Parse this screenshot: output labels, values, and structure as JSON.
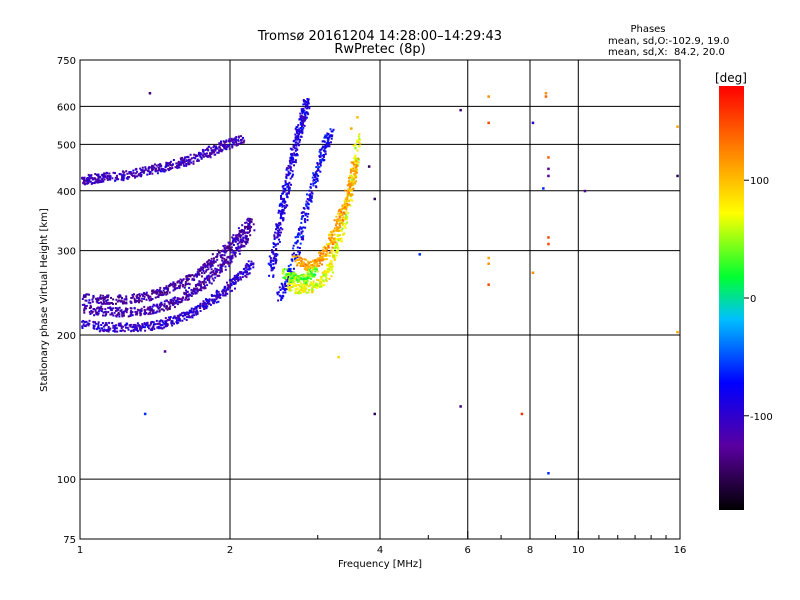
{
  "chart_data": {
    "type": "scatter",
    "title": "Tromsø 20161204 14:28:00–14:29:43",
    "subtitle": "RwPretec (8p)",
    "xlabel": "Frequency [MHz]",
    "ylabel": "Stationary phase Virtual Height [km]",
    "x_scale": "log",
    "y_scale": "log",
    "xlim": [
      1,
      16
    ],
    "ylim": [
      75,
      750
    ],
    "x_ticks": [
      1,
      2,
      4,
      6,
      8,
      10,
      16
    ],
    "y_ticks": [
      75,
      100,
      200,
      300,
      400,
      500,
      600,
      750
    ],
    "grid": true,
    "info": {
      "heading": "Phases",
      "line1": "mean, sd,O:-102.9, 19.0",
      "line2": "mean, sd,X:  84.2, 20.0"
    },
    "colorbar": {
      "label": "[deg]",
      "range": [
        -180,
        180
      ],
      "ticks": [
        -100,
        0,
        100
      ],
      "tick_labels": [
        "-100",
        "0",
        "100"
      ]
    },
    "traces": [
      {
        "points": [
          [
            1.0,
            422
          ],
          [
            1.05,
            425
          ],
          [
            1.1,
            428
          ],
          [
            1.2,
            432
          ],
          [
            1.3,
            438
          ],
          [
            1.4,
            445
          ],
          [
            1.5,
            452
          ],
          [
            1.6,
            460
          ],
          [
            1.7,
            470
          ],
          [
            1.8,
            482
          ],
          [
            1.9,
            495
          ],
          [
            2.0,
            505
          ],
          [
            2.1,
            515
          ]
        ],
        "phase": -110
      },
      {
        "points": [
          [
            1.0,
            228
          ],
          [
            1.1,
            225
          ],
          [
            1.2,
            224
          ],
          [
            1.3,
            225
          ],
          [
            1.4,
            228
          ],
          [
            1.5,
            233
          ],
          [
            1.6,
            240
          ],
          [
            1.7,
            250
          ],
          [
            1.8,
            262
          ],
          [
            1.9,
            276
          ],
          [
            2.0,
            292
          ],
          [
            2.1,
            310
          ],
          [
            2.2,
            330
          ]
        ],
        "phase": -115
      },
      {
        "points": [
          [
            1.0,
            212
          ],
          [
            1.1,
            209
          ],
          [
            1.2,
            208
          ],
          [
            1.3,
            208
          ],
          [
            1.4,
            210
          ],
          [
            1.5,
            214
          ],
          [
            1.6,
            219
          ],
          [
            1.7,
            226
          ],
          [
            1.8,
            234
          ],
          [
            1.9,
            244
          ],
          [
            2.0,
            255
          ],
          [
            2.1,
            268
          ],
          [
            2.2,
            282
          ]
        ],
        "phase": -100
      },
      {
        "points": [
          [
            1.0,
            240
          ],
          [
            1.1,
            238
          ],
          [
            1.2,
            238
          ],
          [
            1.3,
            240
          ],
          [
            1.4,
            244
          ],
          [
            1.5,
            250
          ],
          [
            1.6,
            258
          ],
          [
            1.7,
            268
          ],
          [
            1.8,
            280
          ],
          [
            1.9,
            295
          ],
          [
            2.0,
            312
          ],
          [
            2.1,
            330
          ],
          [
            2.2,
            350
          ]
        ],
        "phase": -120
      },
      {
        "points": [
          [
            2.4,
            270
          ],
          [
            2.45,
            300
          ],
          [
            2.5,
            340
          ],
          [
            2.55,
            380
          ],
          [
            2.6,
            420
          ],
          [
            2.65,
            460
          ],
          [
            2.7,
            500
          ],
          [
            2.75,
            540
          ],
          [
            2.8,
            580
          ],
          [
            2.85,
            620
          ]
        ],
        "phase": -90
      },
      {
        "points": [
          [
            2.5,
            240
          ],
          [
            2.6,
            260
          ],
          [
            2.7,
            300
          ],
          [
            2.8,
            350
          ],
          [
            2.9,
            400
          ],
          [
            3.0,
            450
          ],
          [
            3.1,
            500
          ],
          [
            3.2,
            540
          ]
        ],
        "phase": -80
      },
      {
        "points": [
          [
            2.6,
            255
          ],
          [
            2.75,
            250
          ],
          [
            2.9,
            252
          ],
          [
            3.05,
            260
          ],
          [
            3.15,
            275
          ],
          [
            3.25,
            300
          ],
          [
            3.35,
            340
          ],
          [
            3.45,
            390
          ],
          [
            3.55,
            450
          ],
          [
            3.6,
            520
          ]
        ],
        "phase": 70
      },
      {
        "points": [
          [
            2.7,
            290
          ],
          [
            2.85,
            280
          ],
          [
            3.0,
            285
          ],
          [
            3.1,
            300
          ],
          [
            3.2,
            320
          ],
          [
            3.3,
            350
          ],
          [
            3.4,
            380
          ],
          [
            3.5,
            420
          ],
          [
            3.55,
            460
          ]
        ],
        "phase": 110
      },
      {
        "points": [
          [
            2.55,
            270
          ],
          [
            2.65,
            265
          ],
          [
            2.75,
            262
          ],
          [
            2.85,
            265
          ],
          [
            2.95,
            275
          ]
        ],
        "phase": 40
      }
    ],
    "scatter_points": [
      {
        "x": 1.38,
        "y": 640,
        "phase": -140
      },
      {
        "x": 1.48,
        "y": 185,
        "phase": -130
      },
      {
        "x": 1.35,
        "y": 137,
        "phase": -60
      },
      {
        "x": 3.9,
        "y": 137,
        "phase": -150
      },
      {
        "x": 3.3,
        "y": 180,
        "phase": 90
      },
      {
        "x": 3.9,
        "y": 385,
        "phase": -150
      },
      {
        "x": 3.8,
        "y": 450,
        "phase": -150
      },
      {
        "x": 4.8,
        "y": 295,
        "phase": -60
      },
      {
        "x": 5.8,
        "y": 590,
        "phase": -140
      },
      {
        "x": 5.8,
        "y": 142,
        "phase": -140
      },
      {
        "x": 6.6,
        "y": 630,
        "phase": 120
      },
      {
        "x": 6.6,
        "y": 555,
        "phase": 150
      },
      {
        "x": 6.6,
        "y": 290,
        "phase": 110
      },
      {
        "x": 6.6,
        "y": 282,
        "phase": 120
      },
      {
        "x": 6.6,
        "y": 255,
        "phase": 150
      },
      {
        "x": 7.7,
        "y": 137,
        "phase": 160
      },
      {
        "x": 8.1,
        "y": 555,
        "phase": -100
      },
      {
        "x": 8.1,
        "y": 270,
        "phase": 120
      },
      {
        "x": 8.6,
        "y": 640,
        "phase": 120
      },
      {
        "x": 8.6,
        "y": 630,
        "phase": 140
      },
      {
        "x": 8.7,
        "y": 470,
        "phase": 140
      },
      {
        "x": 8.7,
        "y": 445,
        "phase": -130
      },
      {
        "x": 8.7,
        "y": 430,
        "phase": -130
      },
      {
        "x": 8.5,
        "y": 405,
        "phase": -60
      },
      {
        "x": 8.7,
        "y": 320,
        "phase": 150
      },
      {
        "x": 8.7,
        "y": 310,
        "phase": 150
      },
      {
        "x": 8.7,
        "y": 103,
        "phase": -60
      },
      {
        "x": 10.3,
        "y": 400,
        "phase": -130
      },
      {
        "x": 15.8,
        "y": 545,
        "phase": 110
      },
      {
        "x": 15.8,
        "y": 430,
        "phase": -150
      },
      {
        "x": 15.8,
        "y": 203,
        "phase": 110
      },
      {
        "x": 3.6,
        "y": 570,
        "phase": 100
      },
      {
        "x": 3.5,
        "y": 540,
        "phase": 110
      }
    ]
  }
}
